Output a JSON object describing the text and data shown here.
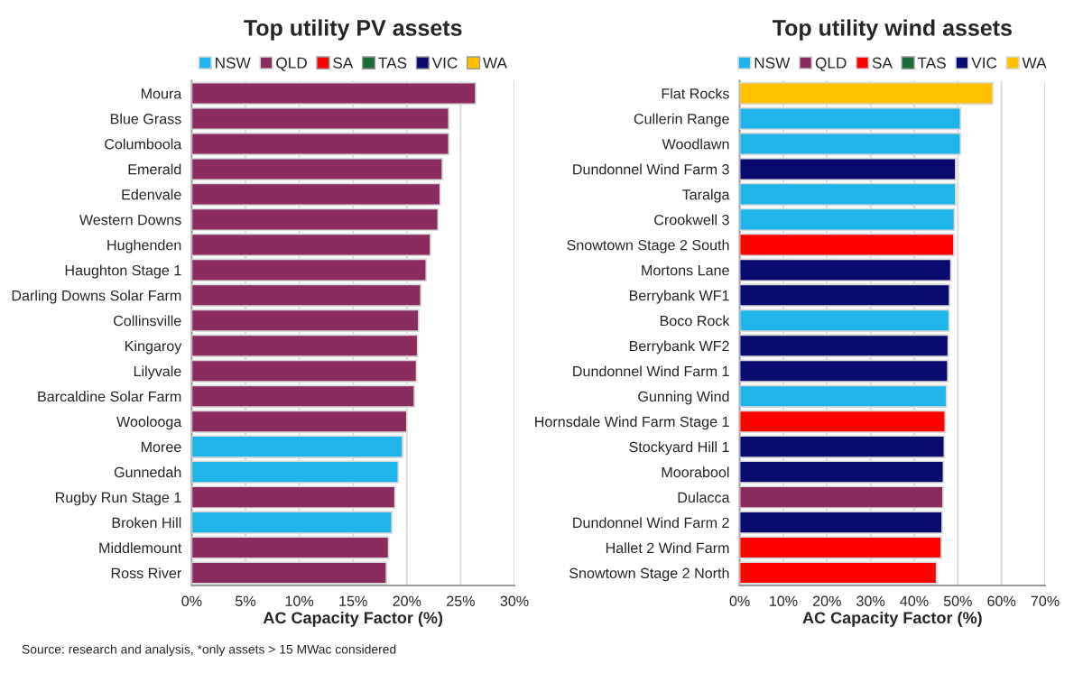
{
  "chart_data": [
    {
      "type": "bar",
      "orientation": "horizontal",
      "title": "Top utility PV assets",
      "xlabel": "AC Capacity Factor (%)",
      "categories": [
        "Moura",
        "Blue Grass",
        "Columboola",
        "Emerald",
        "Edenvale",
        "Western Downs",
        "Hughenden",
        "Haughton Stage 1",
        "Darling Downs Solar Farm",
        "Collinsville",
        "Kingaroy",
        "Lilyvale",
        "Barcaldine Solar Farm",
        "Woolooga",
        "Moree",
        "Gunnedah",
        "Rugby Run Stage 1",
        "Broken Hill",
        "Middlemount",
        "Ross River"
      ],
      "series": [
        {
          "name": "NSW",
          "color": "#1fb4ea",
          "values": [
            null,
            null,
            null,
            null,
            null,
            null,
            null,
            null,
            null,
            null,
            null,
            null,
            null,
            null,
            19.6,
            19.2,
            null,
            18.6,
            null,
            null
          ]
        },
        {
          "name": "QLD",
          "color": "#8b2c5e",
          "values": [
            26.4,
            23.9,
            23.9,
            23.3,
            23.1,
            22.9,
            22.2,
            21.8,
            21.3,
            21.1,
            21.0,
            20.9,
            20.7,
            20.0,
            null,
            null,
            18.9,
            null,
            18.3,
            18.1
          ]
        },
        {
          "name": "SA",
          "color": "#ff0000",
          "values": [
            null,
            null,
            null,
            null,
            null,
            null,
            null,
            null,
            null,
            null,
            null,
            null,
            null,
            null,
            null,
            null,
            null,
            null,
            null,
            null
          ]
        },
        {
          "name": "TAS",
          "color": "#1a6b3a",
          "values": [
            null,
            null,
            null,
            null,
            null,
            null,
            null,
            null,
            null,
            null,
            null,
            null,
            null,
            null,
            null,
            null,
            null,
            null,
            null,
            null
          ]
        },
        {
          "name": "VIC",
          "color": "#0a0a6e",
          "values": [
            null,
            null,
            null,
            null,
            null,
            null,
            null,
            null,
            null,
            null,
            null,
            null,
            null,
            null,
            null,
            null,
            null,
            null,
            null,
            null
          ]
        },
        {
          "name": "WA",
          "color": "#ffc000",
          "values": [
            null,
            null,
            null,
            null,
            null,
            null,
            null,
            null,
            null,
            null,
            null,
            null,
            null,
            null,
            null,
            null,
            null,
            null,
            null,
            null
          ]
        }
      ],
      "xlim": [
        0,
        30
      ],
      "xticks": [
        {
          "value": 0,
          "label": "0%"
        },
        {
          "value": 5,
          "label": "5%"
        },
        {
          "value": 10,
          "label": "10%"
        },
        {
          "value": 15,
          "label": "15%"
        },
        {
          "value": 20,
          "label": "20%"
        },
        {
          "value": 25,
          "label": "25%"
        },
        {
          "value": 30,
          "label": "30%"
        }
      ],
      "grid": "x",
      "legend": "top",
      "annotations": [
        "Source: research and analysis, *only assets > 15 MWac considered"
      ]
    },
    {
      "type": "bar",
      "orientation": "horizontal",
      "title": "Top utility wind assets",
      "xlabel": "AC Capacity Factor (%)",
      "categories": [
        "Flat Rocks",
        "Cullerin Range",
        "Woodlawn",
        "Dundonnel Wind Farm 3",
        "Taralga",
        "Crookwell 3",
        "Snowtown Stage 2 South",
        "Mortons Lane",
        "Berrybank WF1",
        "Boco Rock",
        "Berrybank WF2",
        "Dundonnel Wind Farm 1",
        "Gunning Wind",
        "Hornsdale Wind Farm Stage 1",
        "Stockyard Hill 1",
        "Moorabool",
        "Dulacca",
        "Dundonnel Wind Farm 2",
        "Hallet 2 Wind Farm",
        "Snowtown Stage 2 North"
      ],
      "series": [
        {
          "name": "NSW",
          "color": "#1fb4ea",
          "values": [
            null,
            50.6,
            50.6,
            null,
            49.5,
            49.2,
            null,
            null,
            null,
            48.0,
            null,
            null,
            47.4,
            null,
            null,
            null,
            null,
            null,
            null,
            null
          ]
        },
        {
          "name": "QLD",
          "color": "#8b2c5e",
          "values": [
            null,
            null,
            null,
            null,
            null,
            null,
            null,
            null,
            null,
            null,
            null,
            null,
            null,
            null,
            null,
            null,
            46.6,
            null,
            null,
            null
          ]
        },
        {
          "name": "SA",
          "color": "#ff0000",
          "values": [
            null,
            null,
            null,
            null,
            null,
            null,
            49.1,
            null,
            null,
            null,
            null,
            null,
            null,
            47.1,
            null,
            null,
            null,
            null,
            46.2,
            45.1
          ]
        },
        {
          "name": "TAS",
          "color": "#1a6b3a",
          "values": [
            null,
            null,
            null,
            null,
            null,
            null,
            null,
            null,
            null,
            null,
            null,
            null,
            null,
            null,
            null,
            null,
            null,
            null,
            null,
            null
          ]
        },
        {
          "name": "VIC",
          "color": "#0a0a6e",
          "values": [
            null,
            null,
            null,
            49.5,
            null,
            null,
            null,
            48.4,
            48.1,
            null,
            47.8,
            47.7,
            null,
            null,
            46.9,
            46.7,
            null,
            46.4,
            null,
            null
          ]
        },
        {
          "name": "WA",
          "color": "#ffc000",
          "values": [
            58.0,
            null,
            null,
            null,
            null,
            null,
            null,
            null,
            null,
            null,
            null,
            null,
            null,
            null,
            null,
            null,
            null,
            null,
            null,
            null
          ]
        }
      ],
      "xlim": [
        0,
        70
      ],
      "xticks": [
        {
          "value": 0,
          "label": "0%"
        },
        {
          "value": 10,
          "label": "10%"
        },
        {
          "value": 20,
          "label": "20%"
        },
        {
          "value": 30,
          "label": "30%"
        },
        {
          "value": 40,
          "label": "40%"
        },
        {
          "value": 50,
          "label": "50%"
        },
        {
          "value": 60,
          "label": "60%"
        },
        {
          "value": 70,
          "label": "70%"
        }
      ],
      "grid": "x",
      "legend": "top"
    }
  ]
}
